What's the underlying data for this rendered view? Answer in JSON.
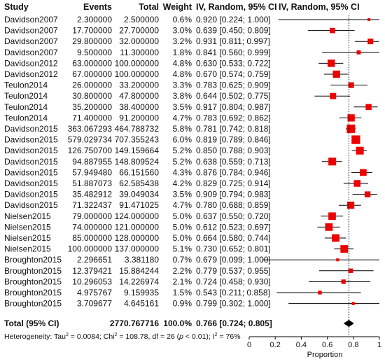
{
  "chart_data": {
    "type": "forest_plot",
    "columns": {
      "study": "Study",
      "events": "Events",
      "total": "Total",
      "weight": "Weight",
      "ci": "IV, Random, 95% CI",
      "plot": "IV, Random, 95% CI"
    },
    "x_axis": {
      "label": "Proportion",
      "ticks": [
        "0",
        "0.2",
        "0.4",
        "0.6",
        "0.8",
        "1"
      ],
      "range": [
        0,
        1
      ]
    },
    "pooled_line": 0.766,
    "rows": [
      {
        "study": "Davidson2007",
        "events": "2.300000",
        "total": "2.500000",
        "weight": "0.6%",
        "ci": "0.920 [0.224; 1.000]",
        "est": 0.92,
        "lo": 0.224,
        "hi": 1.0,
        "w": 0.6
      },
      {
        "study": "Davidson2007",
        "events": "17.700000",
        "total": "27.700000",
        "weight": "3.0%",
        "ci": "0.639 [0.450; 0.809]",
        "est": 0.639,
        "lo": 0.45,
        "hi": 0.809,
        "w": 3.0
      },
      {
        "study": "Davidson2007",
        "events": "29.800000",
        "total": "32.000000",
        "weight": "3.2%",
        "ci": "0.931 [0.811; 0.997]",
        "est": 0.931,
        "lo": 0.811,
        "hi": 0.997,
        "w": 3.2
      },
      {
        "study": "Davidson2007",
        "events": "9.500000",
        "total": "11.300000",
        "weight": "1.8%",
        "ci": "0.841 [0.560; 0.999]",
        "est": 0.841,
        "lo": 0.56,
        "hi": 0.999,
        "w": 1.8
      },
      {
        "study": "Davidson2012",
        "events": "63.000000",
        "total": "100.000000",
        "weight": "4.8%",
        "ci": "0.630 [0.533; 0.722]",
        "est": 0.63,
        "lo": 0.533,
        "hi": 0.722,
        "w": 4.8
      },
      {
        "study": "Davidson2012",
        "events": "67.000000",
        "total": "100.000000",
        "weight": "4.8%",
        "ci": "0.670 [0.574; 0.759]",
        "est": 0.67,
        "lo": 0.574,
        "hi": 0.759,
        "w": 4.8
      },
      {
        "study": "Teulon2014",
        "events": "26.000000",
        "total": "33.200000",
        "weight": "3.3%",
        "ci": "0.783 [0.625; 0.909]",
        "est": 0.783,
        "lo": 0.625,
        "hi": 0.909,
        "w": 3.3
      },
      {
        "study": "Teulon2014",
        "events": "30.800000",
        "total": "47.800000",
        "weight": "3.8%",
        "ci": "0.644 [0.502; 0.775]",
        "est": 0.644,
        "lo": 0.502,
        "hi": 0.775,
        "w": 3.8
      },
      {
        "study": "Teulon2014",
        "events": "35.200000",
        "total": "38.400000",
        "weight": "3.5%",
        "ci": "0.917 [0.804; 0.987]",
        "est": 0.917,
        "lo": 0.804,
        "hi": 0.987,
        "w": 3.5
      },
      {
        "study": "Teulon2014",
        "events": "71.400000",
        "total": "91.200000",
        "weight": "4.7%",
        "ci": "0.783 [0.692; 0.862]",
        "est": 0.783,
        "lo": 0.692,
        "hi": 0.862,
        "w": 4.7
      },
      {
        "study": "Davidson2015",
        "events": "363.067293",
        "total": "464.788732",
        "weight": "5.8%",
        "ci": "0.781 [0.742; 0.818]",
        "est": 0.781,
        "lo": 0.742,
        "hi": 0.818,
        "w": 5.8
      },
      {
        "study": "Davidson2015",
        "events": "579.029734",
        "total": "707.355243",
        "weight": "6.0%",
        "ci": "0.819 [0.789; 0.846]",
        "est": 0.819,
        "lo": 0.789,
        "hi": 0.846,
        "w": 6.0
      },
      {
        "study": "Davidson2015",
        "events": "126.750700",
        "total": "149.159664",
        "weight": "5.2%",
        "ci": "0.850 [0.788; 0.903]",
        "est": 0.85,
        "lo": 0.788,
        "hi": 0.903,
        "w": 5.2
      },
      {
        "study": "Davidson2015",
        "events": "94.887955",
        "total": "148.809524",
        "weight": "5.2%",
        "ci": "0.638 [0.559; 0.713]",
        "est": 0.638,
        "lo": 0.559,
        "hi": 0.713,
        "w": 5.2
      },
      {
        "study": "Davidson2015",
        "events": "57.949480",
        "total": "66.151560",
        "weight": "4.3%",
        "ci": "0.876 [0.784; 0.946]",
        "est": 0.876,
        "lo": 0.784,
        "hi": 0.946,
        "w": 4.3
      },
      {
        "study": "Davidson2015",
        "events": "51.887073",
        "total": "62.585438",
        "weight": "4.2%",
        "ci": "0.829 [0.725; 0.914]",
        "est": 0.829,
        "lo": 0.725,
        "hi": 0.914,
        "w": 4.2
      },
      {
        "study": "Davidson2015",
        "events": "35.482912",
        "total": "39.049034",
        "weight": "3.5%",
        "ci": "0.909 [0.794; 0.983]",
        "est": 0.909,
        "lo": 0.794,
        "hi": 0.983,
        "w": 3.5
      },
      {
        "study": "Davidson2015",
        "events": "71.322437",
        "total": "91.471025",
        "weight": "4.7%",
        "ci": "0.780 [0.688; 0.859]",
        "est": 0.78,
        "lo": 0.688,
        "hi": 0.859,
        "w": 4.7
      },
      {
        "study": "Nielsen2015",
        "events": "79.000000",
        "total": "124.000000",
        "weight": "5.0%",
        "ci": "0.637 [0.550; 0.720]",
        "est": 0.637,
        "lo": 0.55,
        "hi": 0.72,
        "w": 5.0
      },
      {
        "study": "Nielsen2015",
        "events": "74.000000",
        "total": "121.000000",
        "weight": "5.0%",
        "ci": "0.612 [0.523; 0.697]",
        "est": 0.612,
        "lo": 0.523,
        "hi": 0.697,
        "w": 5.0
      },
      {
        "study": "Nielsen2015",
        "events": "85.000000",
        "total": "128.000000",
        "weight": "5.0%",
        "ci": "0.664 [0.580; 0.744]",
        "est": 0.664,
        "lo": 0.58,
        "hi": 0.744,
        "w": 5.0
      },
      {
        "study": "Nielsen2015",
        "events": "100.000000",
        "total": "137.000000",
        "weight": "5.1%",
        "ci": "0.730 [0.652; 0.801]",
        "est": 0.73,
        "lo": 0.652,
        "hi": 0.801,
        "w": 5.1
      },
      {
        "study": "Broughton2015",
        "events": "2.296651",
        "total": "3.381180",
        "weight": "0.7%",
        "ci": "0.679 [0.099; 1.000]",
        "est": 0.679,
        "lo": 0.099,
        "hi": 1.0,
        "w": 0.7
      },
      {
        "study": "Broughton2015",
        "events": "12.379421",
        "total": "15.884244",
        "weight": "2.2%",
        "ci": "0.779 [0.537; 0.955]",
        "est": 0.779,
        "lo": 0.537,
        "hi": 0.955,
        "w": 2.2
      },
      {
        "study": "Broughton2015",
        "events": "10.296053",
        "total": "14.226974",
        "weight": "2.1%",
        "ci": "0.724 [0.458; 0.930]",
        "est": 0.724,
        "lo": 0.458,
        "hi": 0.93,
        "w": 2.1
      },
      {
        "study": "Broughton2015",
        "events": "4.975767",
        "total": "9.159935",
        "weight": "1.5%",
        "ci": "0.543 [0.211; 0.858]",
        "est": 0.543,
        "lo": 0.211,
        "hi": 0.858,
        "w": 1.5
      },
      {
        "study": "Broughton2015",
        "events": "3.709677",
        "total": "4.645161",
        "weight": "0.9%",
        "ci": "0.799 [0.302; 1.000]",
        "est": 0.799,
        "lo": 0.302,
        "hi": 1.0,
        "w": 0.9
      }
    ],
    "total": {
      "study": "Total (95% CI)",
      "events": "",
      "total": "2770.767716",
      "weight": "100.0%",
      "ci": "0.766 [0.724; 0.805]",
      "est": 0.766,
      "lo": 0.724,
      "hi": 0.805
    },
    "heterogeneity": {
      "prefix": "Heterogeneity: Tau",
      "tau_val": " = 0.0084; Chi",
      "chi_val": " = 108.78, df = 26 (",
      "p_italic": "p",
      "p_rest": " < 0.01); I",
      "i_val": " = 76%",
      "sup": "2"
    },
    "colors": {
      "square": "#ee0000",
      "diamond": "#000000",
      "line": "#000000"
    }
  }
}
